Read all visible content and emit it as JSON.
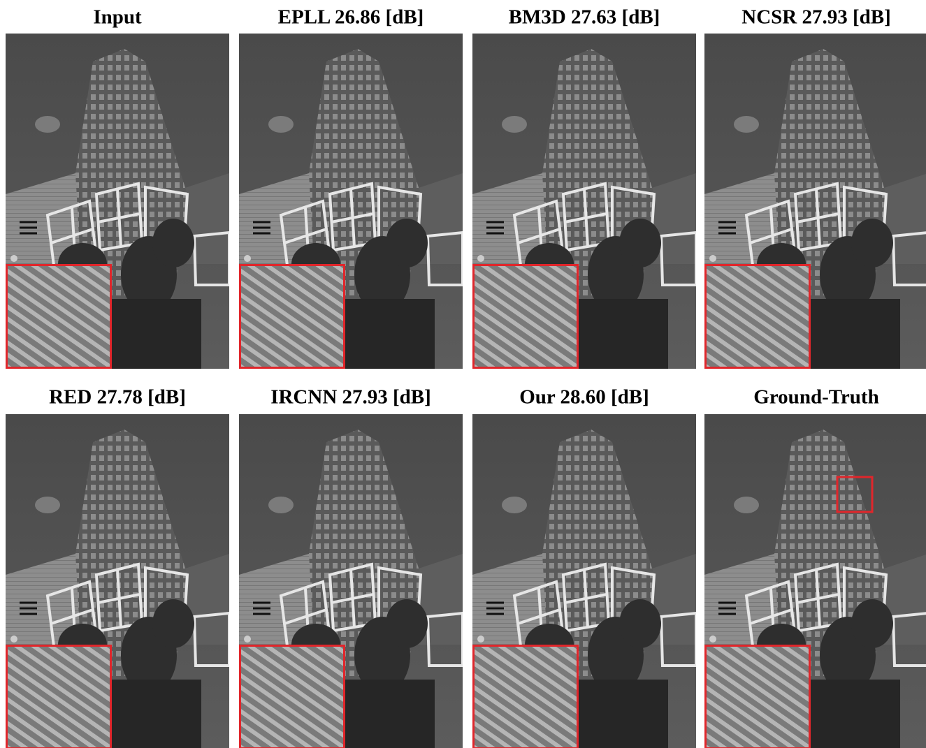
{
  "figure": {
    "panels": [
      {
        "label": "Input"
      },
      {
        "label": "EPLL  26.86 [dB]"
      },
      {
        "label": "BM3D  27.63 [dB]"
      },
      {
        "label": "NCSR  27.93 [dB]"
      },
      {
        "label": "RED  27.78 [dB]"
      },
      {
        "label": "IRCNN  27.93 [dB]"
      },
      {
        "label": "Our  28.60 [dB]"
      },
      {
        "label": "Ground-Truth"
      }
    ]
  }
}
